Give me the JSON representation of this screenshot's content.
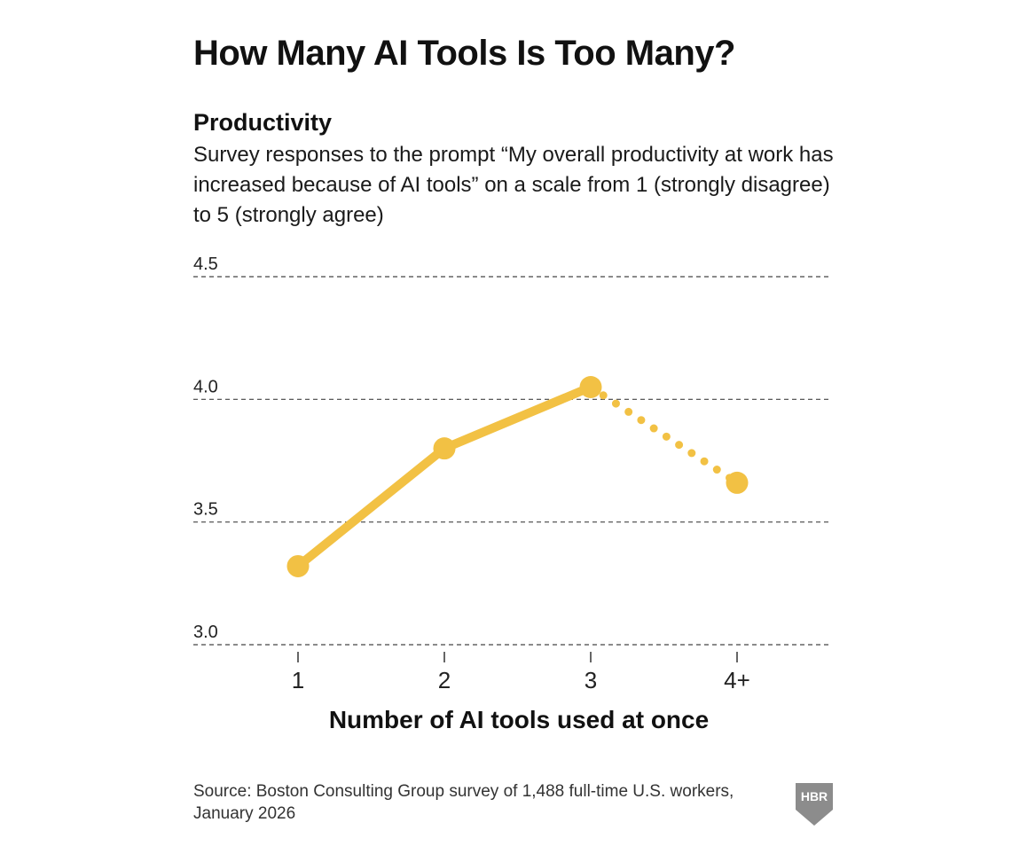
{
  "chart_data": {
    "type": "line",
    "title": "How Many AI Tools Is Too Many?",
    "subtitle": "Productivity",
    "description": "Survey responses to the prompt “My overall productivity at work has increased because of AI tools” on a scale from 1 (strongly disagree) to 5 (strongly agree)",
    "categories": [
      "1",
      "2",
      "3",
      "4+"
    ],
    "values": [
      3.32,
      3.8,
      4.05,
      3.66
    ],
    "solid_segment": [
      "1",
      "2",
      "3"
    ],
    "dotted_segment": [
      "3",
      "4+"
    ],
    "yticks": [
      "3.0",
      "3.5",
      "4.0",
      "4.5"
    ],
    "ylim": [
      3.0,
      4.5
    ],
    "xlabel": "Number of AI tools used at once",
    "ylabel": "",
    "grid": true,
    "line_color": "#f2c144",
    "grid_color": "#444444"
  },
  "source": "Source: Boston Consulting Group survey of 1,488 full-time U.S. workers, January 2026",
  "logo": {
    "text": "HBR",
    "icon": "hbr-shield-icon",
    "color": "#8c8c8c"
  }
}
